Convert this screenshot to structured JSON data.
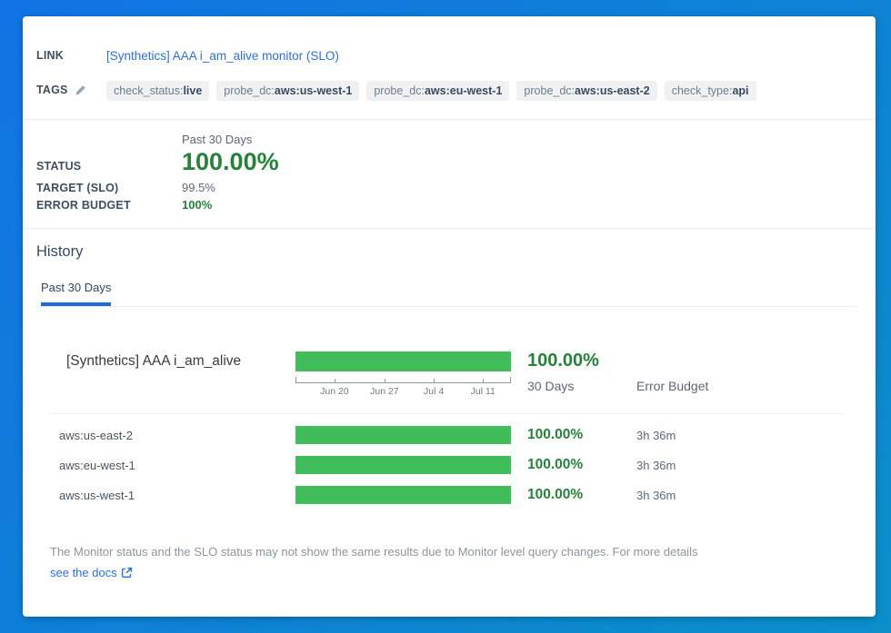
{
  "theme": {
    "bg_top": "#1173e4",
    "bg_bottom": "#0b8fc9",
    "link_blue": "#2e6fd4",
    "accent_blue": "#1d6bd8",
    "bar_green": "#41bd5b",
    "text_green": "#27813a"
  },
  "header": {
    "link_label": "LINK",
    "link_text": "[Synthetics] AAA i_am_alive monitor (SLO)",
    "tags_label": "TAGS",
    "tags": [
      {
        "key": "check_status:",
        "value": "live"
      },
      {
        "key": "probe_dc:",
        "value": "aws:us-west-1"
      },
      {
        "key": "probe_dc:",
        "value": "aws:eu-west-1"
      },
      {
        "key": "probe_dc:",
        "value": "aws:us-east-2"
      },
      {
        "key": "check_type:",
        "value": "api"
      }
    ]
  },
  "status": {
    "period_label": "Past 30 Days",
    "status_label": "STATUS",
    "status_value": "100.00%",
    "target_label": "TARGET (SLO)",
    "target_value": "99.5%",
    "error_budget_label": "ERROR BUDGET",
    "error_budget_value": "100%"
  },
  "history": {
    "title": "History",
    "tab_label": "Past 30 Days"
  },
  "chart_data": {
    "type": "bar",
    "title": "[Synthetics] AAA i_am_alive",
    "period": "30 Days",
    "error_budget_header": "Error Budget",
    "x_ticks": [
      "Jun 20",
      "Jun 27",
      "Jul 4",
      "Jul 11"
    ],
    "x_tick_positions_pct": [
      18.1,
      41.3,
      64.2,
      87.0
    ],
    "overall": {
      "label": "[Synthetics] AAA i_am_alive",
      "uptime_pct": 100.0,
      "uptime_display": "100.00%",
      "bar_fill_pct": 100
    },
    "groups": [
      {
        "label": "aws:us-east-2",
        "uptime_pct": 100.0,
        "uptime_display": "100.00%",
        "error_budget": "3h 36m",
        "bar_fill_pct": 100
      },
      {
        "label": "aws:eu-west-1",
        "uptime_pct": 100.0,
        "uptime_display": "100.00%",
        "error_budget": "3h 36m",
        "bar_fill_pct": 100
      },
      {
        "label": "aws:us-west-1",
        "uptime_pct": 100.0,
        "uptime_display": "100.00%",
        "error_budget": "3h 36m",
        "bar_fill_pct": 100
      }
    ]
  },
  "footer": {
    "note": "The Monitor status and the SLO status may not show the same results due to Monitor level query changes. For more details",
    "docs_link_label": "see the docs"
  }
}
